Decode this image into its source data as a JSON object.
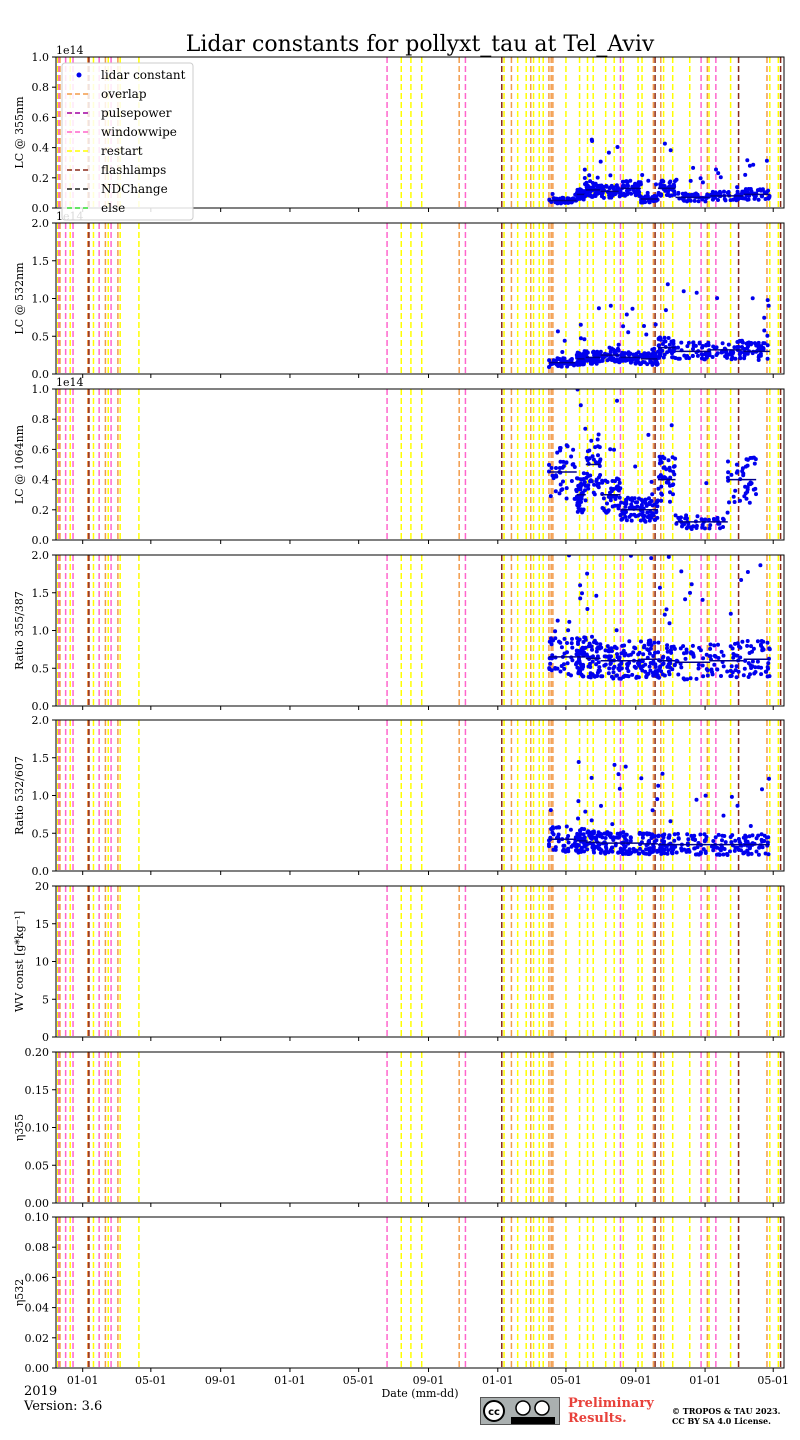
{
  "title": "Lidar constants for pollyxt_tau at Tel_Aviv",
  "xlabel": "Date (mm-dd)",
  "x_tick_labels": [
    "01-01",
    "05-01",
    "09-01",
    "01-01",
    "05-01",
    "09-01",
    "01-01",
    "05-01",
    "09-01",
    "01-01",
    "05-01"
  ],
  "footer": {
    "year": "2019",
    "version": "Version: 3.6",
    "preliminary": "Preliminary Results.",
    "copyright": "© TROPOS & TAU 2023. CC BY SA 4.0 License."
  },
  "legend": [
    {
      "label": "lidar constant",
      "color": "#0000ee",
      "style": "dot"
    },
    {
      "label": "overlap",
      "color": "#f39c4a",
      "style": "dash"
    },
    {
      "label": "pulsepower",
      "color": "#a000a0",
      "style": "dash"
    },
    {
      "label": "windowwipe",
      "color": "#ff66cc",
      "style": "dash"
    },
    {
      "label": "restart",
      "color": "#ffff00",
      "style": "dash"
    },
    {
      "label": "flashlamps",
      "color": "#8b2a1a",
      "style": "dash"
    },
    {
      "label": "NDChange",
      "color": "#222222",
      "style": "dash"
    },
    {
      "label": "else",
      "color": "#33dd33",
      "style": "dash"
    }
  ],
  "chart_data": {
    "type": "scatter",
    "x_unit": "date",
    "x_range": [
      "2018-11-15",
      "2022-05-20"
    ],
    "x_ticks": [
      "2019-01-01",
      "2019-05-01",
      "2019-09-01",
      "2020-01-01",
      "2020-05-01",
      "2020-09-01",
      "2021-01-01",
      "2021-05-01",
      "2021-09-01",
      "2022-01-01",
      "2022-05-01"
    ],
    "events": {
      "overlap": [
        "2018-11-22",
        "2019-01-10",
        "2019-02-10",
        "2019-03-04",
        "2020-10-25",
        "2021-01-25",
        "2021-02-28",
        "2021-04-01",
        "2021-04-05",
        "2021-04-08",
        "2021-10-02",
        "2021-10-15",
        "2022-01-05",
        "2022-04-20"
      ],
      "windowwipe": [
        "2018-11-20",
        "2018-12-02",
        "2018-12-15",
        "2019-01-30",
        "2019-02-20",
        "2020-06-20",
        "2020-11-05",
        "2021-08-05",
        "2021-12-25",
        "2022-01-20"
      ],
      "restart": [
        "2018-11-18",
        "2018-12-10",
        "2019-01-20",
        "2019-02-15",
        "2019-03-08",
        "2019-04-10",
        "2020-07-15",
        "2020-08-01",
        "2020-08-20",
        "2021-01-12",
        "2021-02-05",
        "2021-02-20",
        "2021-03-05",
        "2021-03-15",
        "2021-03-22",
        "2021-05-01",
        "2021-05-25",
        "2021-06-08",
        "2021-06-18",
        "2021-07-10",
        "2021-07-25",
        "2021-08-10",
        "2021-09-05",
        "2021-09-12",
        "2021-10-20",
        "2021-11-05",
        "2021-12-05",
        "2022-01-08",
        "2022-02-15",
        "2022-04-25",
        "2022-05-10"
      ],
      "flashlamps": [
        "2019-01-12",
        "2021-01-08",
        "2021-10-05",
        "2022-03-01",
        "2022-05-14"
      ]
    },
    "panels": [
      {
        "ylabel": "LC @ 355nm",
        "ylim": [
          0,
          100000000000000.0
        ],
        "yticks": [
          "0.0",
          "0.2",
          "0.4",
          "0.6",
          "0.8",
          "1.0"
        ],
        "offset": "1e14",
        "data": true,
        "segments": [
          [
            "2021-04-01",
            0.05
          ],
          [
            "2021-05-20",
            0.09
          ],
          [
            "2021-06-05",
            0.12
          ],
          [
            "2021-07-01",
            0.11
          ],
          [
            "2021-08-05",
            0.13
          ],
          [
            "2021-09-10",
            0.06
          ],
          [
            "2021-10-10",
            0.13
          ],
          [
            "2021-11-10",
            0.07
          ],
          [
            "2022-01-10",
            0.08
          ],
          [
            "2022-03-10",
            0.09
          ],
          [
            "2022-04-25",
            0.07
          ]
        ]
      },
      {
        "ylabel": "LC @ 532nm",
        "ylim": [
          0,
          200000000000000.0
        ],
        "yticks": [
          "0.0",
          "0.5",
          "1.0",
          "1.5",
          "2.0"
        ],
        "offset": "1e14",
        "data": true,
        "segments": [
          [
            "2021-04-01",
            0.15
          ],
          [
            "2021-05-20",
            0.2
          ],
          [
            "2021-06-05",
            0.22
          ],
          [
            "2021-07-01",
            0.25
          ],
          [
            "2021-08-05",
            0.22
          ],
          [
            "2021-09-10",
            0.2
          ],
          [
            "2021-10-10",
            0.35
          ],
          [
            "2021-11-10",
            0.3
          ],
          [
            "2022-01-10",
            0.32
          ],
          [
            "2022-03-10",
            0.3
          ],
          [
            "2022-04-25",
            0.2
          ]
        ]
      },
      {
        "ylabel": "LC @ 1064nm",
        "ylim": [
          0,
          100000000000000.0
        ],
        "yticks": [
          "0.0",
          "0.2",
          "0.4",
          "0.6",
          "0.8",
          "1.0"
        ],
        "offset": "1e14",
        "data": true,
        "segments": [
          [
            "2021-04-01",
            0.45
          ],
          [
            "2021-05-20",
            0.3
          ],
          [
            "2021-06-05",
            0.5
          ],
          [
            "2021-07-01",
            0.3
          ],
          [
            "2021-08-05",
            0.2
          ],
          [
            "2021-09-10",
            0.2
          ],
          [
            "2021-10-10",
            0.4
          ],
          [
            "2021-11-10",
            0.12
          ],
          [
            "2022-02-10",
            0.4
          ],
          [
            "2022-04-01",
            0.45
          ]
        ]
      },
      {
        "ylabel": "Ratio 355/387",
        "ylim": [
          0,
          2.0
        ],
        "yticks": [
          "0.0",
          "0.5",
          "1.0",
          "1.5",
          "2.0"
        ],
        "offset": "",
        "data": true,
        "segments": [
          [
            "2021-04-01",
            0.65
          ],
          [
            "2021-05-20",
            0.65
          ],
          [
            "2021-06-05",
            0.63
          ],
          [
            "2021-07-01",
            0.6
          ],
          [
            "2021-08-05",
            0.6
          ],
          [
            "2021-09-10",
            0.62
          ],
          [
            "2021-10-10",
            0.6
          ],
          [
            "2021-11-10",
            0.58
          ],
          [
            "2022-01-10",
            0.6
          ],
          [
            "2022-03-10",
            0.62
          ],
          [
            "2022-04-25",
            0.62
          ]
        ]
      },
      {
        "ylabel": "Ratio 532/607",
        "ylim": [
          0,
          2.0
        ],
        "yticks": [
          "0.0",
          "0.5",
          "1.0",
          "1.5",
          "2.0"
        ],
        "offset": "",
        "data": true,
        "segments": [
          [
            "2021-04-01",
            0.42
          ],
          [
            "2021-05-20",
            0.4
          ],
          [
            "2021-06-05",
            0.38
          ],
          [
            "2021-07-01",
            0.37
          ],
          [
            "2021-08-05",
            0.37
          ],
          [
            "2021-09-10",
            0.36
          ],
          [
            "2021-10-10",
            0.35
          ],
          [
            "2021-11-10",
            0.35
          ],
          [
            "2022-01-10",
            0.35
          ],
          [
            "2022-03-10",
            0.35
          ],
          [
            "2022-04-25",
            0.36
          ]
        ]
      },
      {
        "ylabel": "WV const [g*kg⁻¹]",
        "ylim": [
          0,
          20
        ],
        "yticks": [
          "0",
          "5",
          "10",
          "15",
          "20"
        ],
        "offset": "",
        "data": false,
        "segments": []
      },
      {
        "ylabel": "η355",
        "ylim": [
          0,
          0.2
        ],
        "yticks": [
          "0.00",
          "0.05",
          "0.10",
          "0.15",
          "0.20"
        ],
        "offset": "",
        "data": false,
        "segments": []
      },
      {
        "ylabel": "η532",
        "ylim": [
          0,
          0.1
        ],
        "yticks": [
          "0.00",
          "0.02",
          "0.04",
          "0.06",
          "0.08",
          "0.10"
        ],
        "offset": "",
        "data": false,
        "segments": []
      }
    ]
  }
}
